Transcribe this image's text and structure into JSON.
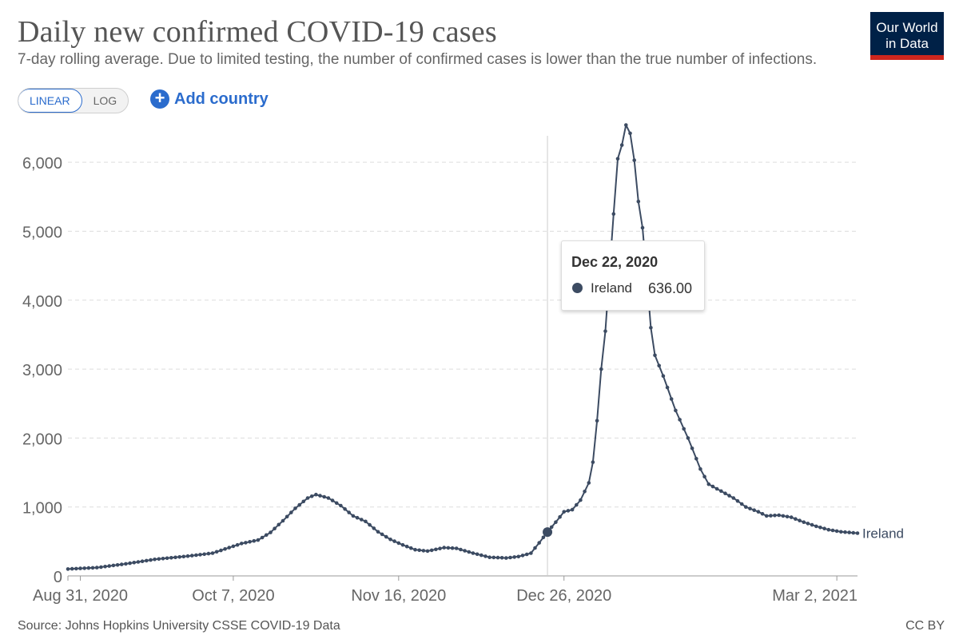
{
  "header": {
    "title": "Daily new confirmed COVID-19 cases",
    "subtitle": "7-day rolling average. Due to limited testing, the number of confirmed cases is lower than the true number of infections.",
    "logo_line1": "Our World",
    "logo_line2": "in Data"
  },
  "controls": {
    "linear_label": "LINEAR",
    "log_label": "LOG",
    "add_country_label": "Add country",
    "active_scale": "linear"
  },
  "tooltip": {
    "date": "Dec 22, 2020",
    "series": "Ireland",
    "value": "636.00"
  },
  "footer": {
    "source": "Source: Johns Hopkins University CSSE COVID-19 Data",
    "license": "CC BY"
  },
  "colors": {
    "line": "#3c4b62",
    "grid": "#dddddd",
    "accent": "#2b6ccd",
    "logo_bg": "#002147",
    "logo_stripe": "#ce261e"
  },
  "chart_data": {
    "type": "line",
    "title": "Daily new confirmed COVID-19 cases",
    "subtitle": "7-day rolling average. Due to limited testing, the number of confirmed cases is lower than the true number of infections.",
    "xlabel": "",
    "ylabel": "",
    "x_type": "date",
    "x_start": "2020-08-28",
    "x_end": "2021-03-07",
    "ylim": [
      0,
      6500
    ],
    "yticks": [
      0,
      1000,
      2000,
      3000,
      4000,
      5000,
      6000
    ],
    "ytick_labels": [
      "0",
      "1,000",
      "2,000",
      "3,000",
      "4,000",
      "5,000",
      "6,000"
    ],
    "xticks": [
      "2020-08-31",
      "2020-10-07",
      "2020-11-16",
      "2020-12-26",
      "2021-03-02"
    ],
    "xtick_labels": [
      "Aug 31, 2020",
      "Oct 7, 2020",
      "Nov 16, 2020",
      "Dec 26, 2020",
      "Mar 2, 2021"
    ],
    "grid": true,
    "series": [
      {
        "name": "Ireland",
        "values": [
          [
            "2020-08-28",
            100
          ],
          [
            "2020-09-04",
            120
          ],
          [
            "2020-09-11",
            175
          ],
          [
            "2020-09-18",
            240
          ],
          [
            "2020-09-25",
            280
          ],
          [
            "2020-10-02",
            330
          ],
          [
            "2020-10-09",
            470
          ],
          [
            "2020-10-13",
            520
          ],
          [
            "2020-10-16",
            630
          ],
          [
            "2020-10-19",
            800
          ],
          [
            "2020-10-22",
            980
          ],
          [
            "2020-10-25",
            1130
          ],
          [
            "2020-10-27",
            1180
          ],
          [
            "2020-10-30",
            1130
          ],
          [
            "2020-11-02",
            1020
          ],
          [
            "2020-11-05",
            870
          ],
          [
            "2020-11-08",
            790
          ],
          [
            "2020-11-11",
            640
          ],
          [
            "2020-11-14",
            530
          ],
          [
            "2020-11-17",
            450
          ],
          [
            "2020-11-20",
            380
          ],
          [
            "2020-11-23",
            360
          ],
          [
            "2020-11-27",
            410
          ],
          [
            "2020-11-30",
            400
          ],
          [
            "2020-12-04",
            330
          ],
          [
            "2020-12-08",
            270
          ],
          [
            "2020-12-12",
            260
          ],
          [
            "2020-12-15",
            280
          ],
          [
            "2020-12-18",
            330
          ],
          [
            "2020-12-20",
            480
          ],
          [
            "2020-12-22",
            636
          ],
          [
            "2020-12-24",
            780
          ],
          [
            "2020-12-26",
            930
          ],
          [
            "2020-12-28",
            960
          ],
          [
            "2020-12-30",
            1100
          ],
          [
            "2021-01-01",
            1350
          ],
          [
            "2021-01-02",
            1650
          ],
          [
            "2021-01-03",
            2250
          ],
          [
            "2021-01-04",
            3000
          ],
          [
            "2021-01-05",
            3550
          ],
          [
            "2021-01-06",
            4400
          ],
          [
            "2021-01-07",
            5250
          ],
          [
            "2021-01-08",
            6050
          ],
          [
            "2021-01-09",
            6250
          ],
          [
            "2021-01-10",
            6540
          ],
          [
            "2021-01-11",
            6420
          ],
          [
            "2021-01-12",
            6030
          ],
          [
            "2021-01-13",
            5430
          ],
          [
            "2021-01-14",
            5050
          ],
          [
            "2021-01-15",
            4350
          ],
          [
            "2021-01-16",
            3600
          ],
          [
            "2021-01-17",
            3200
          ],
          [
            "2021-01-19",
            2900
          ],
          [
            "2021-01-22",
            2400
          ],
          [
            "2021-01-25",
            2000
          ],
          [
            "2021-01-28",
            1550
          ],
          [
            "2021-01-30",
            1330
          ],
          [
            "2021-02-02",
            1230
          ],
          [
            "2021-02-05",
            1130
          ],
          [
            "2021-02-08",
            1000
          ],
          [
            "2021-02-11",
            930
          ],
          [
            "2021-02-13",
            870
          ],
          [
            "2021-02-16",
            880
          ],
          [
            "2021-02-19",
            850
          ],
          [
            "2021-02-22",
            780
          ],
          [
            "2021-02-25",
            720
          ],
          [
            "2021-02-28",
            670
          ],
          [
            "2021-03-03",
            640
          ],
          [
            "2021-03-07",
            620
          ]
        ]
      }
    ],
    "highlight": {
      "date": "2020-12-22",
      "value": 636
    }
  }
}
